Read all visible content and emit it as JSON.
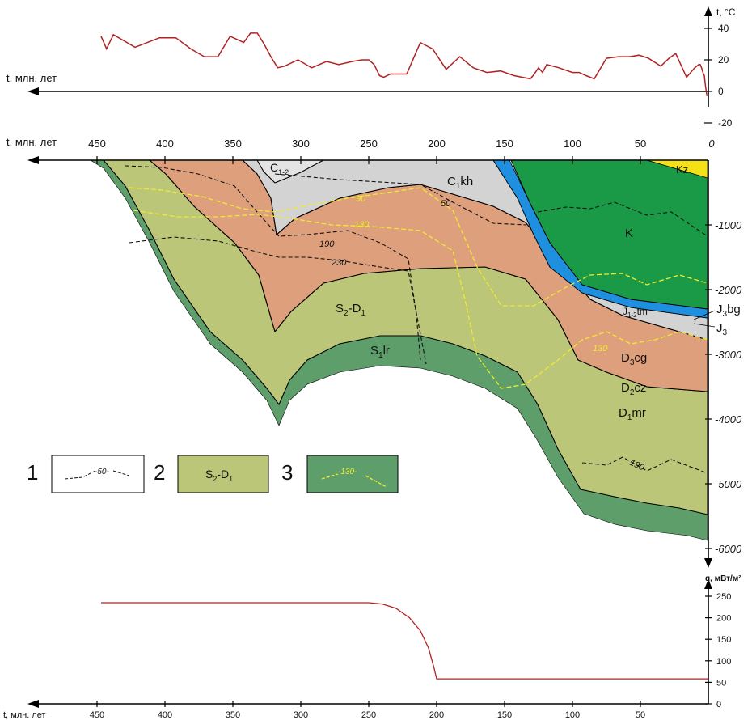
{
  "chart_data": [
    {
      "type": "line",
      "ylabel": "t, °C",
      "xlabel": "t, млн. лет",
      "x_reversed": true,
      "xlim": [
        450,
        0
      ],
      "ylim": [
        -20,
        40
      ],
      "yticks": [
        "40",
        "20",
        "0",
        "-20"
      ],
      "series": [
        {
          "color": "#b22222",
          "x": [
            447,
            443,
            438,
            430,
            422,
            413,
            404,
            392,
            381,
            371,
            361,
            352,
            342,
            337,
            332,
            327,
            322,
            317,
            312,
            302,
            292,
            281,
            272,
            262,
            255,
            250,
            246,
            242,
            239,
            234,
            222,
            212,
            203,
            193,
            183,
            173,
            163,
            153,
            143,
            137,
            131,
            129,
            125,
            122,
            119,
            110,
            100,
            95,
            90,
            84,
            75,
            66,
            58,
            51,
            44,
            35,
            29,
            24,
            16,
            10,
            7,
            6,
            5,
            4,
            3,
            2,
            1
          ],
          "y": [
            35,
            27,
            36,
            32,
            28,
            31,
            34,
            34,
            27,
            22,
            22,
            35,
            31,
            37,
            37,
            30,
            22,
            15,
            16,
            20,
            15,
            19,
            17,
            19,
            20,
            20,
            17,
            10,
            9,
            11,
            11,
            31,
            27,
            14,
            22,
            15,
            12,
            13,
            10,
            9,
            8,
            10,
            15,
            12,
            17,
            15,
            12,
            12,
            10,
            8,
            21,
            22,
            22,
            23,
            21,
            16,
            21,
            24,
            9,
            15,
            17,
            17,
            15,
            12,
            10,
            3,
            -3
          ]
        }
      ]
    },
    {
      "type": "area",
      "xlabel": "t, млн. лет",
      "x_reversed": true,
      "xlim": [
        450,
        0
      ],
      "ylim": [
        0,
        -6000
      ],
      "xticks": [
        "450",
        "400",
        "350",
        "300",
        "250",
        "200",
        "150",
        "100",
        "50",
        "0"
      ],
      "yticks": [
        "-1000",
        "-2000",
        "-3000",
        "-4000",
        "-5000",
        "-6000"
      ],
      "layers": [
        "Kz",
        "K",
        "J3bg",
        "J3",
        "J1-2tm",
        "C1kh",
        "C1-2",
        "D3cg",
        "D2cz",
        "D1mr",
        "S2-D1",
        "S1lr"
      ],
      "contours": [
        "50",
        "90",
        "130",
        "130",
        "190",
        "190",
        "230"
      ],
      "legend": [
        {
          "number": "1",
          "sample": "-50-"
        },
        {
          "number": "2",
          "sample": "S2-D1"
        },
        {
          "number": "3",
          "sample": "-130-"
        }
      ]
    },
    {
      "type": "line",
      "ylabel": "q, мВт/м²",
      "xlabel": "t, млн. лет",
      "x_reversed": true,
      "xlim": [
        450,
        0
      ],
      "ylim": [
        0,
        250
      ],
      "xticks": [
        "450",
        "400",
        "350",
        "300",
        "250",
        "200",
        "150",
        "100",
        "50"
      ],
      "yticks": [
        "250",
        "200",
        "150",
        "100",
        "50",
        "0"
      ],
      "series": [
        {
          "color": "#b22222",
          "x": [
            447,
            250,
            240,
            230,
            220,
            212,
            206,
            202,
            200,
            150,
            100,
            50,
            0
          ],
          "y": [
            235,
            235,
            232,
            222,
            200,
            170,
            130,
            85,
            58,
            58,
            58,
            58,
            58
          ]
        }
      ]
    }
  ]
}
